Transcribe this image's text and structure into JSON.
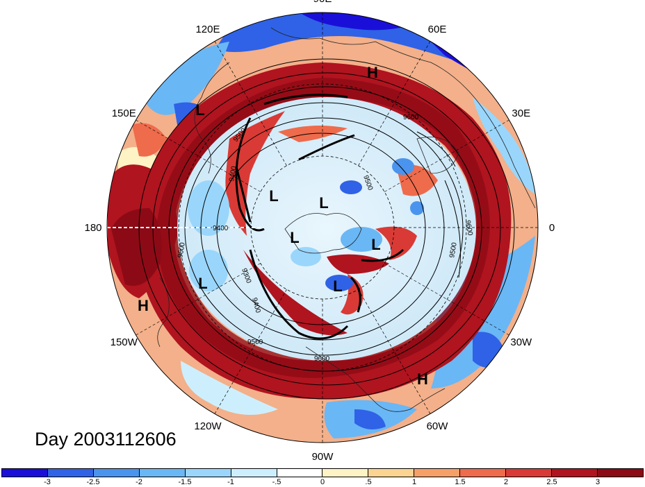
{
  "title": "Day 2003112606",
  "map": {
    "projection": "polar-stereographic",
    "hemisphere": "north"
  },
  "longitude_labels": [
    {
      "text": "90E",
      "lon": 90
    },
    {
      "text": "60E",
      "lon": 60
    },
    {
      "text": "30E",
      "lon": 30
    },
    {
      "text": "0",
      "lon": 0
    },
    {
      "text": "30W",
      "lon": -30
    },
    {
      "text": "60W",
      "lon": -60
    },
    {
      "text": "90W",
      "lon": -90
    },
    {
      "text": "120W",
      "lon": -120
    },
    {
      "text": "150W",
      "lon": -150
    },
    {
      "text": "180",
      "lon": 180
    },
    {
      "text": "150E",
      "lon": 150
    },
    {
      "text": "120E",
      "lon": 120
    }
  ],
  "pressure_systems": [
    {
      "kind": "H",
      "label": "H"
    },
    {
      "kind": "H",
      "label": "H"
    },
    {
      "kind": "H",
      "label": "H"
    },
    {
      "kind": "L",
      "label": "L"
    },
    {
      "kind": "L",
      "label": "L"
    },
    {
      "kind": "L",
      "label": "L"
    },
    {
      "kind": "L",
      "label": "L"
    },
    {
      "kind": "L",
      "label": "L"
    },
    {
      "kind": "L",
      "label": "L"
    },
    {
      "kind": "L",
      "label": "L"
    }
  ],
  "contour_labels": [
    "9500",
    "9600",
    "9400",
    "9300",
    "9400",
    "9500",
    "9600",
    "9500",
    "9600",
    "9500",
    "9600",
    "9400"
  ],
  "colorbar": {
    "colors": [
      "#1a0fd8",
      "#2f62e6",
      "#4b94ee",
      "#6ab7f5",
      "#9ad6fb",
      "#cdeffd",
      "#ffffff",
      "#fdf3c4",
      "#fbd491",
      "#f6a068",
      "#ee6b4c",
      "#d93a35",
      "#b0141f",
      "#8c0a16"
    ],
    "tick_labels": [
      "-3",
      "-2.5",
      "-2",
      "-1.5",
      "-1",
      "-.5",
      "0",
      ".5",
      "1",
      "1.5",
      "2",
      "2.5",
      "3"
    ]
  }
}
